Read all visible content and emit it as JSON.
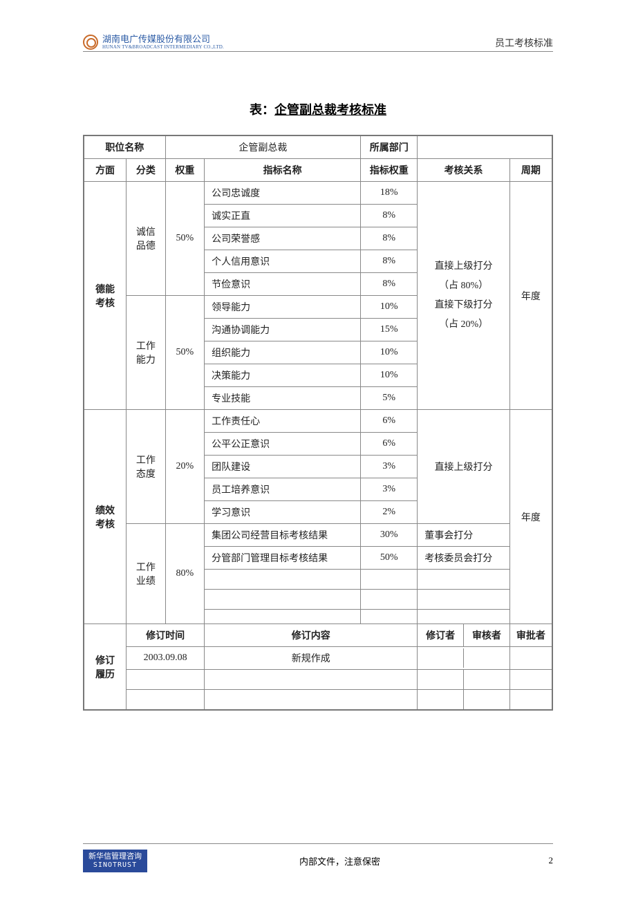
{
  "header": {
    "company_name": "湖南电广传媒股份有限公司",
    "company_sub": "HUNAN TV&BROADCAST INTERMEDIARY CO.,LTD.",
    "right_text": "员工考核标准"
  },
  "title_prefix": "表：",
  "title_main": "企管副总裁考核标准",
  "row1": {
    "position_label": "职位名称",
    "position_value": "企管副总裁",
    "dept_label": "所属部门",
    "dept_value": ""
  },
  "head": {
    "aspect": "方面",
    "category": "分类",
    "weight": "权重",
    "indicator": "指标名称",
    "ind_weight": "指标权重",
    "relation": "考核关系",
    "period": "周期"
  },
  "aspect1": "德能<br>考核",
  "aspect2": "绩效<br>考核",
  "cat1": {
    "name": "诚信<br>品德",
    "weight": "50%"
  },
  "cat2": {
    "name": "工作<br>能力",
    "weight": "50%"
  },
  "cat3": {
    "name": "工作<br>态度",
    "weight": "20%"
  },
  "cat4": {
    "name": "工作<br>业绩",
    "weight": "80%"
  },
  "ind": {
    "i1": "公司忠诚度",
    "w1": "18%",
    "i2": "诚实正直",
    "w2": "8%",
    "i3": "公司荣誉感",
    "w3": "8%",
    "i4": "个人信用意识",
    "w4": "8%",
    "i5": "节俭意识",
    "w5": "8%",
    "i6": "领导能力",
    "w6": "10%",
    "i7": "沟通协调能力",
    "w7": "15%",
    "i8": "组织能力",
    "w8": "10%",
    "i9": "决策能力",
    "w9": "10%",
    "i10": "专业技能",
    "w10": "5%",
    "i11": "工作责任心",
    "w11": "6%",
    "i12": "公平公正意识",
    "w12": "6%",
    "i13": "团队建设",
    "w13": "3%",
    "i14": "员工培养意识",
    "w14": "3%",
    "i15": "学习意识",
    "w15": "2%",
    "i16": "集团公司经营目标考核结果",
    "w16": "30%",
    "i17": "分管部门管理目标考核结果",
    "w17": "50%"
  },
  "rel1_l1": "直接上级打分",
  "rel1_l2": "（占 80%）",
  "rel1_l3": "直接下级打分",
  "rel1_l4": "（占 20%）",
  "rel2": "直接上级打分",
  "rel3": "董事会打分",
  "rel4": "考核委员会打分",
  "period1": "年度",
  "period2": "年度",
  "rev": {
    "aspect": "修订<br>履历",
    "time_h": "修订时间",
    "content_h": "修订内容",
    "editor_h": "修订者",
    "reviewer_h": "审核者",
    "approver_h": "审批者",
    "r1_time": "2003.09.08",
    "r1_content": "新规作成"
  },
  "footer": {
    "logo_cn": "新华信管理咨询",
    "logo_en": "SINOTRUST",
    "center": "内部文件，注意保密",
    "page": "2"
  }
}
